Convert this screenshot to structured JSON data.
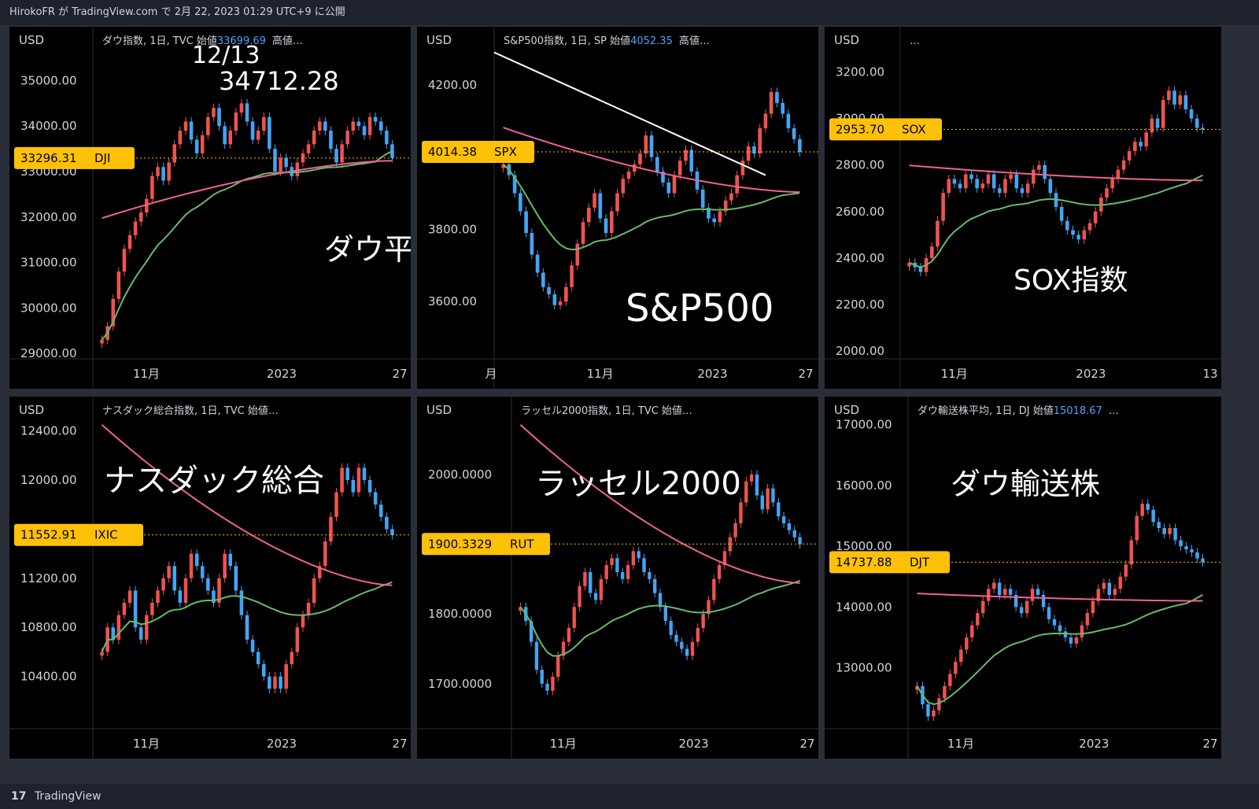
{
  "header": {
    "text": "HirokoFR が TradingView.com で 2月 22, 2023 01:29 UTC+9 に公開"
  },
  "footer": {
    "brand": "TradingView",
    "logo": "tv-logo-icon"
  },
  "colors": {
    "up": "#ef5350",
    "down": "#42a5f5",
    "ma_pink": "#f06292",
    "ma_green": "#66bb6a",
    "badge": "#ffc107"
  },
  "chart_data": [
    {
      "id": "dji",
      "type": "candlestick",
      "currency": "USD",
      "legend": "ダウ指数, 1日, TVC  始値",
      "legend_value": "33699.69",
      "legend_tail": "高値…",
      "yticks": [
        "35000.00",
        "34000.00",
        "33000.00",
        "32000.00",
        "31000.00",
        "30000.00",
        "29000.00"
      ],
      "ylim": [
        28950,
        35700
      ],
      "xticks": [
        "11月",
        "2023",
        "27"
      ],
      "current": {
        "price": "33296.31",
        "symbol": "DJI"
      },
      "annotations": [
        "12/13",
        "34712.28"
      ],
      "title_overlay": "ダウ平均",
      "closes": [
        29300,
        29600,
        30200,
        30800,
        31300,
        31600,
        31900,
        32100,
        32400,
        32900,
        33100,
        32800,
        33200,
        33600,
        33900,
        34100,
        33700,
        33400,
        33800,
        34200,
        34400,
        34000,
        33600,
        33900,
        34300,
        34500,
        34100,
        33700,
        33900,
        34200,
        33500,
        33000,
        33300,
        33100,
        32900,
        33200,
        33400,
        33600,
        33900,
        34100,
        33900,
        33500,
        33200,
        33600,
        33900,
        34100,
        34000,
        33800,
        34200,
        34100,
        33900,
        33600,
        33300
      ]
    },
    {
      "id": "spx",
      "type": "candlestick",
      "currency": "USD",
      "legend": "S&P500指数, 1日, SP  始値",
      "legend_value": "4052.35",
      "legend_tail": "高値…",
      "yticks": [
        "4200.00",
        "3800.00",
        "3600.00"
      ],
      "ylim": [
        3450,
        4300
      ],
      "xticks": [
        "月",
        "11月",
        "2023",
        "27"
      ],
      "current": {
        "price": "4014.38",
        "symbol": "SPX"
      },
      "title_overlay": "S&P500",
      "closes": [
        3980,
        3950,
        3900,
        3850,
        3790,
        3730,
        3680,
        3640,
        3620,
        3590,
        3600,
        3640,
        3700,
        3760,
        3820,
        3860,
        3900,
        3830,
        3790,
        3850,
        3900,
        3940,
        3960,
        3980,
        4010,
        4060,
        4000,
        3960,
        3930,
        3900,
        3950,
        3990,
        4020,
        3960,
        3910,
        3860,
        3830,
        3820,
        3850,
        3880,
        3900,
        3950,
        3990,
        4030,
        4010,
        4080,
        4120,
        4180,
        4150,
        4120,
        4080,
        4050,
        4014
      ]
    },
    {
      "id": "sox",
      "type": "candlestick",
      "currency": "USD",
      "legend": "…",
      "legend_value": "",
      "legend_tail": "",
      "yticks": [
        "3200.00",
        "3000.00",
        "2800.00",
        "2600.00",
        "2400.00",
        "2200.00",
        "2000.00"
      ],
      "ylim": [
        1980,
        3300
      ],
      "xticks": [
        "11月",
        "2023",
        "13"
      ],
      "current": {
        "price": "2953.70",
        "symbol": "SOX"
      },
      "title_overlay": "SOX指数",
      "closes": [
        2380,
        2360,
        2340,
        2400,
        2450,
        2560,
        2680,
        2740,
        2720,
        2700,
        2760,
        2740,
        2700,
        2720,
        2760,
        2700,
        2680,
        2740,
        2760,
        2700,
        2680,
        2720,
        2780,
        2800,
        2740,
        2680,
        2620,
        2560,
        2520,
        2500,
        2480,
        2520,
        2550,
        2600,
        2660,
        2700,
        2740,
        2780,
        2820,
        2860,
        2900,
        2880,
        2940,
        3000,
        2960,
        3080,
        3120,
        3060,
        3100,
        3040,
        3000,
        2960,
        2953
      ]
    },
    {
      "id": "ixic",
      "type": "candlestick",
      "currency": "USD",
      "legend": "ナスダック総合指数, 1日, TVC  始値…",
      "legend_value": "",
      "legend_tail": "",
      "yticks": [
        "12400.00",
        "12000.00",
        "11200.00",
        "10800.00",
        "10400.00"
      ],
      "ylim": [
        10000,
        12500
      ],
      "xticks": [
        "11月",
        "2023",
        "27"
      ],
      "current": {
        "price": "11552.91",
        "symbol": "IXIC"
      },
      "title_overlay": "ナスダック総合",
      "closes": [
        10600,
        10800,
        10700,
        10900,
        11000,
        11100,
        10800,
        10700,
        10900,
        11000,
        11100,
        11200,
        11300,
        11100,
        11000,
        11200,
        11400,
        11300,
        11200,
        11100,
        11000,
        11200,
        11400,
        11300,
        11100,
        10900,
        10700,
        10600,
        10500,
        10400,
        10300,
        10400,
        10300,
        10500,
        10600,
        10800,
        10900,
        11000,
        11200,
        11300,
        11500,
        11700,
        11900,
        12100,
        12000,
        11900,
        12100,
        12000,
        11900,
        11800,
        11700,
        11600,
        11552
      ]
    },
    {
      "id": "rut",
      "type": "candlestick",
      "currency": "USD",
      "legend": "ラッセル2000指数, 1日, TVC  始値…",
      "legend_value": "",
      "legend_tail": "",
      "yticks": [
        "2000.0000",
        "1800.0000",
        "1700.0000"
      ],
      "ylim": [
        1640,
        2080
      ],
      "xticks": [
        "11月",
        "2023",
        "27"
      ],
      "current": {
        "price": "1900.3329",
        "symbol": "RUT"
      },
      "title_overlay": "ラッセル2000",
      "closes": [
        1810,
        1790,
        1760,
        1720,
        1700,
        1690,
        1710,
        1740,
        1760,
        1780,
        1810,
        1840,
        1860,
        1830,
        1820,
        1850,
        1870,
        1880,
        1860,
        1850,
        1870,
        1890,
        1880,
        1860,
        1850,
        1830,
        1810,
        1790,
        1770,
        1760,
        1750,
        1740,
        1760,
        1780,
        1800,
        1820,
        1850,
        1870,
        1890,
        1910,
        1930,
        1960,
        1990,
        2000,
        1970,
        1950,
        1980,
        1960,
        1940,
        1930,
        1920,
        1910,
        1900
      ]
    },
    {
      "id": "djt",
      "type": "candlestick",
      "currency": "USD",
      "legend": "ダウ輸送株平均, 1日, DJ  始値",
      "legend_value": "15018.67",
      "legend_tail": "…",
      "yticks": [
        "17000.00",
        "16000.00",
        "15000.00",
        "14000.00",
        "13000.00"
      ],
      "ylim": [
        12050,
        17100
      ],
      "xticks": [
        "11月",
        "2023",
        "27"
      ],
      "current": {
        "price": "14737.88",
        "symbol": "DJT"
      },
      "title_overlay": "ダウ輸送株",
      "closes": [
        12700,
        12400,
        12200,
        12300,
        12500,
        12700,
        12900,
        13100,
        13300,
        13500,
        13700,
        13900,
        14100,
        14300,
        14400,
        14200,
        14300,
        14200,
        14000,
        13900,
        14100,
        14300,
        14200,
        14000,
        13800,
        13700,
        13600,
        13500,
        13400,
        13500,
        13700,
        13900,
        14100,
        14300,
        14400,
        14200,
        14300,
        14500,
        14700,
        15100,
        15500,
        15700,
        15600,
        15400,
        15300,
        15200,
        15300,
        15100,
        15000,
        14950,
        14900,
        14800,
        14737
      ]
    }
  ]
}
